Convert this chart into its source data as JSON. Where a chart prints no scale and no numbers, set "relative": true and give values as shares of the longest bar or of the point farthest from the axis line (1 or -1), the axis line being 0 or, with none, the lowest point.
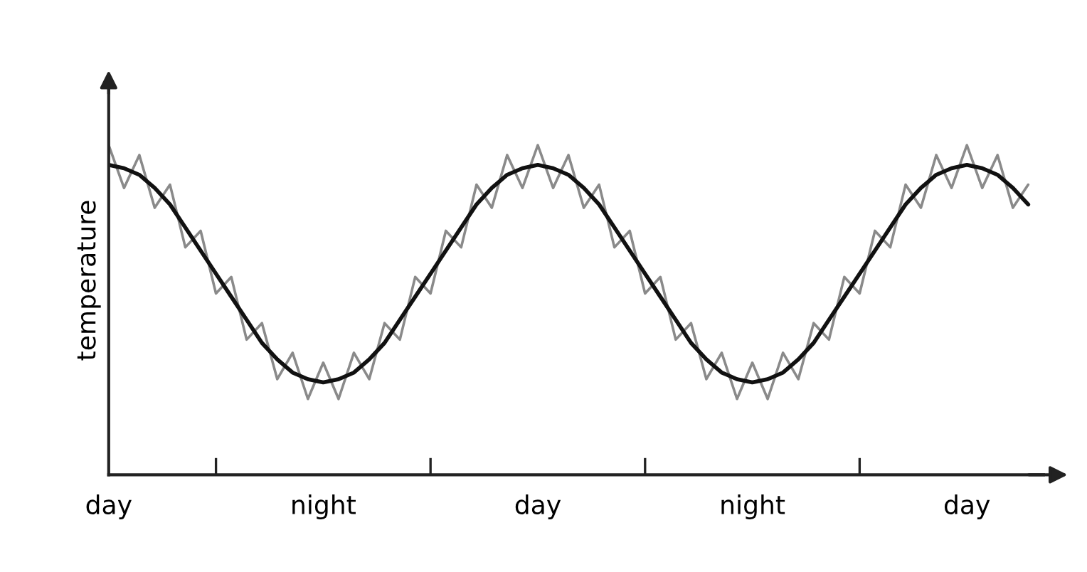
{
  "chart_data": {
    "type": "line",
    "relative": true,
    "ylabel": "temperature",
    "tick_labels": "x",
    "grid": false,
    "marker": "none",
    "line_style": "solid",
    "categories": [
      "day",
      null,
      null,
      null,
      null,
      null,
      null,
      null,
      null,
      null,
      null,
      null,
      null,
      null,
      "night",
      null,
      null,
      null,
      null,
      null,
      null,
      null,
      null,
      null,
      null,
      null,
      null,
      null,
      "day",
      null,
      null,
      null,
      null,
      null,
      null,
      null,
      null,
      null,
      null,
      null,
      null,
      null,
      "night",
      null,
      null,
      null,
      null,
      null,
      null,
      null,
      null,
      null,
      null,
      null,
      null,
      null,
      "day",
      null,
      null,
      null,
      null
    ],
    "series": [
      {
        "color": "#8a8a8a",
        "values": [
          1.0,
          0.87,
          0.97,
          0.81,
          0.88,
          0.69,
          0.74,
          0.55,
          0.6,
          0.41,
          0.46,
          0.29,
          0.37,
          0.23,
          0.34,
          0.23,
          0.37,
          0.29,
          0.46,
          0.41,
          0.6,
          0.55,
          0.74,
          0.69,
          0.88,
          0.81,
          0.97,
          0.87,
          1.0,
          0.87,
          0.97,
          0.81,
          0.88,
          0.69,
          0.74,
          0.55,
          0.6,
          0.41,
          0.46,
          0.29,
          0.37,
          0.23,
          0.34,
          0.23,
          0.37,
          0.29,
          0.46,
          0.41,
          0.6,
          0.55,
          0.74,
          0.69,
          0.88,
          0.81,
          0.97,
          0.87,
          1.0,
          0.87,
          0.97,
          0.81,
          0.88
        ]
      },
      {
        "color": "#111111",
        "values": [
          0.94,
          0.93,
          0.91,
          0.87,
          0.82,
          0.75,
          0.68,
          0.61,
          0.54,
          0.47,
          0.4,
          0.35,
          0.31,
          0.29,
          0.28,
          0.29,
          0.31,
          0.35,
          0.4,
          0.47,
          0.54,
          0.61,
          0.68,
          0.75,
          0.82,
          0.87,
          0.91,
          0.93,
          0.94,
          0.93,
          0.91,
          0.87,
          0.82,
          0.75,
          0.68,
          0.61,
          0.54,
          0.47,
          0.4,
          0.35,
          0.31,
          0.29,
          0.28,
          0.29,
          0.31,
          0.35,
          0.4,
          0.47,
          0.54,
          0.61,
          0.68,
          0.75,
          0.82,
          0.87,
          0.91,
          0.93,
          0.94,
          0.93,
          0.91,
          0.87,
          0.82
        ]
      }
    ]
  }
}
